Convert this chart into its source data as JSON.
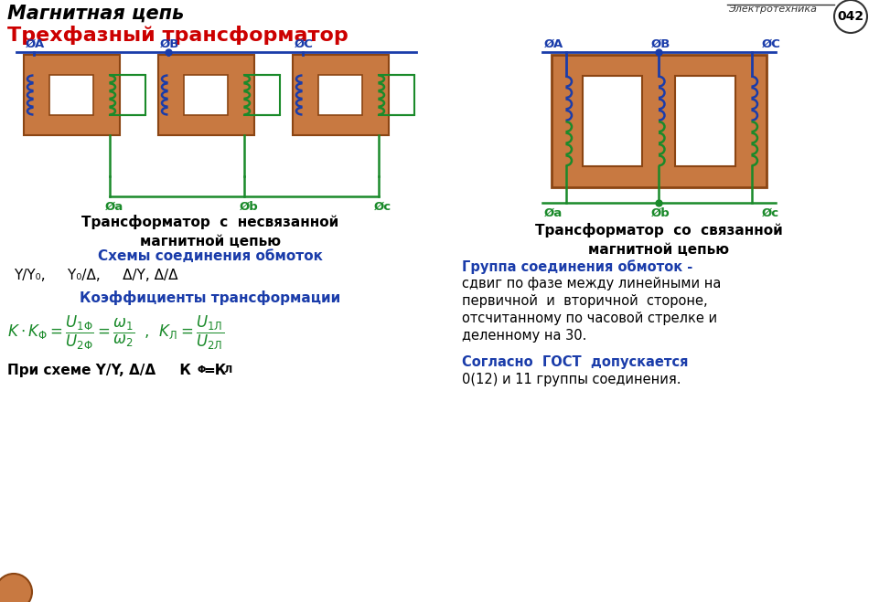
{
  "title1": "Магнитная цепь",
  "title2": "Трехфазный трансформатор",
  "badge_text1": "Электротехника",
  "badge_text2": "042",
  "bg_color": "#ffffff",
  "core_color": "#c87941",
  "core_dark": "#8B4513",
  "wire_blue": "#1a3caa",
  "wire_green": "#1a8a2a",
  "text_blue": "#1a3caa",
  "text_red": "#cc0000",
  "text_green": "#1a8a2a",
  "text_black": "#000000",
  "schemes_label": "Схемы соединения обмоток",
  "coeff_label": "Коэффициенты трансформации",
  "caption_left": "Трансформатор  с  несвязанной\nмагнитной цепью",
  "caption_right": "Трансформатор  со  связанной\nмагнитной цепью",
  "right_text1_blue": "Группа соединения обмоток -",
  "right_text1_black": [
    "сдвиг по фазе между линейными на",
    "первичной  и  вторичной  стороне,",
    "отсчитанному по часовой стрелке и",
    "деленному на 30."
  ],
  "right_text2_blue": "Согласно  ГОСТ  допускается",
  "right_text2_black": "0(12) и 11 группы соединения."
}
